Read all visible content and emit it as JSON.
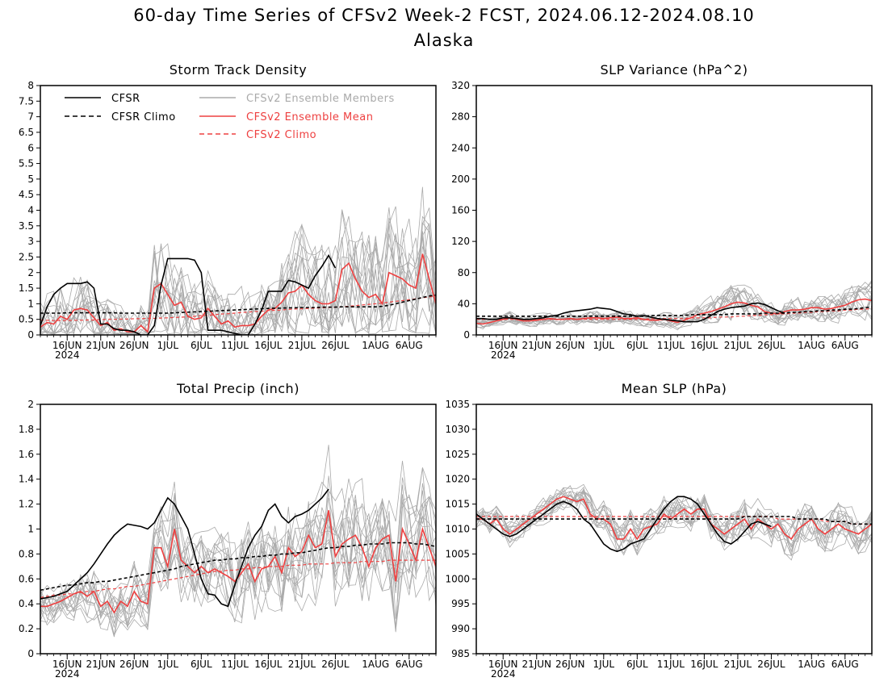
{
  "figure": {
    "title": "60-day Time Series of CFSv2 Week-2 FCST, 2024.06.12-2024.08.10",
    "subtitle": "Alaska"
  },
  "colors": {
    "cfsr": "#000000",
    "ensemble_members": "#aaaaaa",
    "ensemble_mean": "#ee4040"
  },
  "x_axis": {
    "ticks": [
      {
        "day": 4,
        "label": "16JUN"
      },
      {
        "day": 9,
        "label": "21JUN"
      },
      {
        "day": 14,
        "label": "26JUN"
      },
      {
        "day": 19,
        "label": "1JUL"
      },
      {
        "day": 24,
        "label": "6JUL"
      },
      {
        "day": 29,
        "label": "11JUL"
      },
      {
        "day": 34,
        "label": "16JUL"
      },
      {
        "day": 39,
        "label": "21JUL"
      },
      {
        "day": 44,
        "label": "26JUL"
      },
      {
        "day": 50,
        "label": "1AUG"
      },
      {
        "day": 55,
        "label": "6AUG"
      }
    ],
    "year_label": "2024"
  },
  "legend": {
    "cfsr": "CFSR",
    "cfsr_climo": "CFSR Climo",
    "members": "CFSv2 Ensemble Members",
    "mean": "CFSv2 Ensemble Mean",
    "cfsv2_climo": "CFSv2 Climo"
  },
  "chart_data": [
    {
      "id": "storm",
      "type": "line",
      "title": "Storm Track Density",
      "ylim": [
        0,
        8
      ],
      "yticks": [
        "0",
        "0.5",
        "1",
        "1.5",
        "2",
        "2.5",
        "3",
        "3.5",
        "4",
        "4.5",
        "5",
        "5.5",
        "6",
        "6.5",
        "7",
        "7.5",
        "8"
      ],
      "ytick_values": [
        0,
        0.5,
        1,
        1.5,
        2,
        2.5,
        3,
        3.5,
        4,
        4.5,
        5,
        5.5,
        6,
        6.5,
        7,
        7.5,
        8
      ],
      "cfsr": [
        0.3,
        0.9,
        1.3,
        1.5,
        1.65,
        1.65,
        1.65,
        1.7,
        1.5,
        0.35,
        0.35,
        0.2,
        0.15,
        0.15,
        0.1,
        0,
        0,
        0.3,
        1.6,
        2.45,
        2.45,
        2.45,
        2.45,
        2.4,
        2.0,
        0.15,
        0.15,
        0.15,
        0.1,
        0.05,
        0,
        0,
        0.35,
        0.8,
        1.4,
        1.4,
        1.4,
        1.75,
        1.7,
        1.6,
        1.5,
        1.9,
        2.2,
        2.55,
        2.15
      ],
      "cfsr_climo": [
        0.7,
        0.7,
        0.7,
        0.7,
        0.71,
        0.71,
        0.71,
        0.71,
        0.71,
        0.71,
        0.71,
        0.71,
        0.7,
        0.7,
        0.7,
        0.7,
        0.7,
        0.7,
        0.7,
        0.7,
        0.71,
        0.72,
        0.73,
        0.74,
        0.75,
        0.76,
        0.77,
        0.78,
        0.79,
        0.8,
        0.81,
        0.82,
        0.83,
        0.84,
        0.85,
        0.86,
        0.86,
        0.87,
        0.87,
        0.88,
        0.88,
        0.88,
        0.89,
        0.89,
        0.89,
        0.9,
        0.9,
        0.9,
        0.9,
        0.9,
        0.9,
        0.92,
        0.95,
        1.0,
        1.05,
        1.1,
        1.15,
        1.2,
        1.25,
        1.28
      ],
      "ens_mean": [
        0.25,
        0.4,
        0.35,
        0.6,
        0.5,
        0.8,
        0.85,
        0.8,
        0.55,
        0.3,
        0.4,
        0.15,
        0.2,
        0.1,
        0.1,
        0.3,
        0.1,
        1.5,
        1.65,
        1.3,
        0.95,
        1.05,
        0.6,
        0.5,
        0.55,
        0.85,
        0.6,
        0.35,
        0.45,
        0.25,
        0.3,
        0.3,
        0.35,
        0.6,
        0.8,
        0.85,
        1.05,
        1.35,
        1.4,
        1.6,
        1.3,
        1.1,
        1.0,
        1.0,
        1.1,
        2.1,
        2.3,
        1.8,
        1.4,
        1.2,
        1.3,
        1.0,
        2.0,
        1.9,
        1.8,
        1.6,
        1.5,
        2.6,
        1.8,
        1.0
      ],
      "cfsv2_climo": [
        0.48,
        0.47,
        0.46,
        0.46,
        0.46,
        0.47,
        0.47,
        0.48,
        0.48,
        0.49,
        0.5,
        0.5,
        0.51,
        0.51,
        0.52,
        0.52,
        0.53,
        0.53,
        0.54,
        0.55,
        0.56,
        0.57,
        0.58,
        0.6,
        0.62,
        0.63,
        0.65,
        0.67,
        0.68,
        0.7,
        0.72,
        0.73,
        0.75,
        0.76,
        0.78,
        0.79,
        0.8,
        0.82,
        0.83,
        0.84,
        0.85,
        0.86,
        0.87,
        0.88,
        0.89,
        0.9,
        0.92,
        0.94,
        0.96,
        0.98,
        1.0,
        1.02,
        1.05,
        1.08,
        1.1,
        1.13,
        1.16,
        1.19,
        1.22,
        1.25
      ],
      "spread": [
        1.0,
        1.3,
        1.2,
        1.3,
        1.2,
        1.2,
        1.2,
        1.2,
        1.1,
        0.9,
        0.9,
        0.8,
        0.8,
        0.7,
        0.7,
        0.9,
        0.8,
        2.0,
        2.0,
        1.8,
        1.6,
        1.6,
        1.4,
        1.3,
        1.3,
        1.4,
        1.3,
        1.1,
        1.1,
        1.0,
        1.1,
        1.1,
        1.2,
        1.4,
        1.5,
        1.6,
        1.8,
        2.0,
        2.0,
        2.1,
        2.0,
        1.9,
        1.9,
        1.9,
        2.0,
        2.5,
        2.6,
        2.4,
        2.3,
        2.2,
        2.3,
        2.2,
        2.6,
        2.6,
        2.5,
        2.5,
        2.4,
        2.7,
        2.5,
        2.2
      ],
      "clip_min": 0
    },
    {
      "id": "slpvar",
      "type": "line",
      "title": "SLP Variance (hPa^2)",
      "ylim": [
        0,
        320
      ],
      "yticks": [
        "0",
        "40",
        "80",
        "120",
        "160",
        "200",
        "240",
        "280",
        "320"
      ],
      "ytick_values": [
        0,
        40,
        80,
        120,
        160,
        200,
        240,
        280,
        320
      ],
      "cfsr": [
        21,
        21,
        20,
        20,
        22,
        22,
        21,
        20,
        20,
        21,
        22,
        24,
        25,
        28,
        30,
        31,
        32,
        33,
        35,
        34,
        33,
        30,
        27,
        26,
        24,
        25,
        23,
        21,
        20,
        19,
        18,
        17,
        17,
        17,
        20,
        25,
        30,
        33,
        35,
        36,
        37,
        40,
        41,
        39,
        35,
        31,
        28
      ],
      "cfsr_climo": [
        24,
        24,
        24,
        24,
        24,
        24,
        24,
        24,
        24,
        24,
        24,
        24,
        24,
        24,
        24,
        24,
        24,
        24,
        24,
        24,
        24,
        24,
        24,
        24,
        24,
        24,
        25,
        25,
        25,
        25,
        25,
        25,
        26,
        26,
        26,
        26,
        26,
        26,
        27,
        27,
        27,
        27,
        27,
        28,
        28,
        28,
        28,
        29,
        29,
        30,
        30,
        31,
        31,
        32,
        32,
        33,
        33,
        34,
        35,
        36
      ],
      "ens_mean": [
        15,
        14,
        16,
        18,
        20,
        22,
        20,
        18,
        18,
        19,
        20,
        21,
        20,
        20,
        21,
        20,
        21,
        22,
        22,
        21,
        22,
        23,
        21,
        21,
        22,
        20,
        19,
        19,
        20,
        18,
        16,
        19,
        22,
        26,
        28,
        30,
        33,
        36,
        40,
        42,
        41,
        38,
        36,
        30,
        28,
        27,
        30,
        32,
        32,
        33,
        35,
        35,
        33,
        34,
        36,
        38,
        42,
        45,
        46,
        44
      ],
      "cfsv2_climo": [
        20,
        20,
        20,
        20,
        20,
        20,
        20,
        20,
        20,
        20,
        20,
        20,
        20,
        20,
        20,
        20,
        20,
        20,
        20,
        20,
        20,
        20,
        20,
        20,
        20,
        20,
        21,
        21,
        21,
        21,
        21,
        21,
        22,
        22,
        22,
        22,
        23,
        23,
        23,
        24,
        24,
        25,
        25,
        26,
        26,
        27,
        27,
        28,
        28,
        29,
        29,
        30,
        30,
        31,
        31,
        32,
        32,
        33,
        33,
        34
      ],
      "spread": [
        7,
        7,
        7,
        7,
        7,
        8,
        8,
        8,
        8,
        8,
        8,
        8,
        8,
        8,
        9,
        9,
        9,
        9,
        9,
        9,
        10,
        10,
        10,
        10,
        10,
        10,
        10,
        10,
        10,
        10,
        10,
        10,
        12,
        14,
        16,
        18,
        20,
        22,
        24,
        24,
        24,
        22,
        20,
        18,
        16,
        16,
        18,
        18,
        18,
        18,
        19,
        19,
        19,
        20,
        20,
        22,
        24,
        26,
        28,
        28
      ],
      "clip_min": 0
    },
    {
      "id": "precip",
      "type": "line",
      "title": "Total Precip (inch)",
      "ylim": [
        0,
        2
      ],
      "yticks": [
        "0",
        "0.2",
        "0.4",
        "0.6",
        "0.8",
        "1",
        "1.2",
        "1.4",
        "1.6",
        "1.8",
        "2"
      ],
      "ytick_values": [
        0,
        0.2,
        0.4,
        0.6,
        0.8,
        1,
        1.2,
        1.4,
        1.6,
        1.8,
        2
      ],
      "cfsr": [
        0.44,
        0.45,
        0.46,
        0.48,
        0.5,
        0.55,
        0.6,
        0.65,
        0.72,
        0.8,
        0.88,
        0.95,
        1.0,
        1.04,
        1.03,
        1.02,
        1.0,
        1.05,
        1.15,
        1.25,
        1.2,
        1.1,
        1.0,
        0.8,
        0.6,
        0.48,
        0.47,
        0.4,
        0.38,
        0.55,
        0.7,
        0.85,
        0.95,
        1.02,
        1.15,
        1.2,
        1.1,
        1.05,
        1.1,
        1.12,
        1.15,
        1.2,
        1.25,
        1.32
      ],
      "cfsr_climo": [
        0.51,
        0.52,
        0.53,
        0.54,
        0.55,
        0.55,
        0.56,
        0.57,
        0.57,
        0.58,
        0.58,
        0.59,
        0.6,
        0.61,
        0.62,
        0.63,
        0.64,
        0.65,
        0.66,
        0.67,
        0.68,
        0.7,
        0.71,
        0.72,
        0.73,
        0.74,
        0.75,
        0.75,
        0.76,
        0.76,
        0.77,
        0.77,
        0.78,
        0.78,
        0.79,
        0.79,
        0.8,
        0.8,
        0.81,
        0.81,
        0.82,
        0.83,
        0.84,
        0.85,
        0.85,
        0.86,
        0.86,
        0.87,
        0.87,
        0.88,
        0.88,
        0.88,
        0.89,
        0.89,
        0.89,
        0.89,
        0.88,
        0.88,
        0.87,
        0.86
      ],
      "ens_mean": [
        0.38,
        0.38,
        0.4,
        0.42,
        0.45,
        0.48,
        0.5,
        0.46,
        0.5,
        0.38,
        0.42,
        0.33,
        0.42,
        0.38,
        0.5,
        0.42,
        0.4,
        0.85,
        0.85,
        0.7,
        1.0,
        0.75,
        0.7,
        0.65,
        0.7,
        0.65,
        0.68,
        0.65,
        0.62,
        0.58,
        0.65,
        0.72,
        0.58,
        0.68,
        0.7,
        0.78,
        0.65,
        0.85,
        0.78,
        0.82,
        0.95,
        0.85,
        0.88,
        1.15,
        0.78,
        0.88,
        0.92,
        0.95,
        0.85,
        0.7,
        0.85,
        0.92,
        0.95,
        0.58,
        1.0,
        0.88,
        0.75,
        1.0,
        0.85,
        0.7
      ],
      "cfsv2_climo": [
        0.45,
        0.46,
        0.47,
        0.47,
        0.48,
        0.48,
        0.49,
        0.5,
        0.5,
        0.51,
        0.52,
        0.52,
        0.53,
        0.54,
        0.54,
        0.55,
        0.56,
        0.57,
        0.58,
        0.59,
        0.6,
        0.61,
        0.62,
        0.63,
        0.64,
        0.65,
        0.66,
        0.66,
        0.67,
        0.67,
        0.68,
        0.68,
        0.69,
        0.69,
        0.7,
        0.7,
        0.7,
        0.71,
        0.71,
        0.71,
        0.72,
        0.72,
        0.72,
        0.72,
        0.73,
        0.73,
        0.73,
        0.73,
        0.74,
        0.74,
        0.74,
        0.74,
        0.75,
        0.75,
        0.75,
        0.75,
        0.75,
        0.75,
        0.75,
        0.75
      ],
      "spread": [
        0.18,
        0.18,
        0.18,
        0.2,
        0.2,
        0.2,
        0.2,
        0.22,
        0.22,
        0.22,
        0.22,
        0.22,
        0.22,
        0.24,
        0.24,
        0.24,
        0.24,
        0.35,
        0.38,
        0.38,
        0.4,
        0.38,
        0.36,
        0.35,
        0.35,
        0.35,
        0.35,
        0.35,
        0.35,
        0.35,
        0.38,
        0.38,
        0.38,
        0.4,
        0.4,
        0.42,
        0.42,
        0.45,
        0.45,
        0.45,
        0.48,
        0.48,
        0.48,
        0.5,
        0.5,
        0.5,
        0.52,
        0.52,
        0.52,
        0.52,
        0.5,
        0.5,
        0.5,
        0.5,
        0.5,
        0.5,
        0.5,
        0.5,
        0.5,
        0.5
      ],
      "clip_min": 0.1
    },
    {
      "id": "mslp",
      "type": "line",
      "title": "Mean SLP (hPa)",
      "ylim": [
        985,
        1035
      ],
      "yticks": [
        "985",
        "990",
        "995",
        "1000",
        "1005",
        "1010",
        "1015",
        "1020",
        "1025",
        "1030",
        "1035"
      ],
      "ytick_values": [
        985,
        990,
        995,
        1000,
        1005,
        1010,
        1015,
        1020,
        1025,
        1030,
        1035
      ],
      "cfsr": [
        1013,
        1012,
        1011,
        1010,
        1009,
        1008.5,
        1009,
        1010,
        1011,
        1012,
        1013,
        1014,
        1015,
        1015.5,
        1015,
        1014,
        1012,
        1011,
        1009,
        1007,
        1006,
        1005.5,
        1006,
        1007,
        1007.5,
        1008,
        1010,
        1012,
        1014,
        1015.5,
        1016.5,
        1016.5,
        1016,
        1015,
        1013,
        1011,
        1009,
        1007.5,
        1007,
        1008,
        1009.5,
        1011,
        1011.5,
        1011,
        1010.5
      ],
      "cfsr_climo": [
        1012,
        1012,
        1012,
        1012,
        1012,
        1012,
        1012,
        1012,
        1012,
        1012,
        1012,
        1012,
        1012,
        1012,
        1012,
        1012,
        1012,
        1012,
        1012,
        1012,
        1012,
        1012,
        1012,
        1012,
        1012,
        1012,
        1012,
        1012,
        1012,
        1012,
        1012,
        1012,
        1012,
        1012,
        1012,
        1012,
        1012,
        1012,
        1012,
        1012,
        1012.5,
        1012.5,
        1012.5,
        1012.5,
        1012.5,
        1012.5,
        1012.5,
        1012.5,
        1012,
        1012,
        1012,
        1012,
        1012,
        1011.5,
        1011.5,
        1011.5,
        1011,
        1011,
        1011,
        1011
      ],
      "ens_mean": [
        1012,
        1012,
        1011,
        1012,
        1010,
        1009,
        1010,
        1011,
        1012,
        1013,
        1014,
        1015,
        1016,
        1016.5,
        1016,
        1015.5,
        1016,
        1013,
        1012,
        1012,
        1011,
        1008,
        1008,
        1010,
        1008,
        1010,
        1010.5,
        1011,
        1013,
        1012,
        1013,
        1014,
        1013,
        1014,
        1014,
        1011,
        1010,
        1009,
        1010,
        1011,
        1012,
        1010,
        1012,
        1011,
        1010,
        1011,
        1009,
        1008,
        1010,
        1011,
        1012,
        1010,
        1009,
        1010,
        1011,
        1010,
        1009.5,
        1009,
        1010,
        1011
      ],
      "cfsv2_climo": [
        1012.5,
        1012.5,
        1012.5,
        1012.5,
        1012.5,
        1012.5,
        1012.5,
        1012.5,
        1012.5,
        1012.5,
        1012.5,
        1012.5,
        1012.5,
        1012.5,
        1012.5,
        1012.5,
        1012.5,
        1012.5,
        1012.5,
        1012.5,
        1012.5,
        1012.5,
        1012.5,
        1012.5,
        1012.5,
        1012.5,
        1012.5,
        1012.5,
        1012.5,
        1012.5,
        1012.5,
        1012.5,
        1012.5,
        1012.5,
        1012.5,
        1012.5,
        1012.5,
        1012.5,
        1012.5,
        1012.5,
        1012.5,
        1012.5,
        1012.5,
        1012.5,
        1012.5,
        1012,
        1012,
        1012,
        1012,
        1012,
        1012,
        1012,
        1011.5,
        1011.5,
        1011.5,
        1011.5,
        1011,
        1011,
        1011,
        1011
      ],
      "spread": [
        2.5,
        2.5,
        2.5,
        2.5,
        2.5,
        3,
        3,
        3,
        3,
        3,
        3,
        3,
        3,
        3,
        3,
        3,
        3,
        4,
        4,
        4,
        4,
        4,
        4,
        4,
        4,
        4,
        4,
        4,
        4,
        4,
        4,
        4,
        4,
        4,
        4,
        4,
        4,
        4,
        4,
        4,
        4,
        4,
        4,
        4,
        4,
        4.5,
        4.5,
        4.5,
        4.5,
        4.5,
        4.5,
        4.5,
        4.5,
        4.5,
        4.5,
        4.5,
        4.5,
        4.5,
        4.5,
        4.5
      ],
      "clip_min": 985
    }
  ]
}
